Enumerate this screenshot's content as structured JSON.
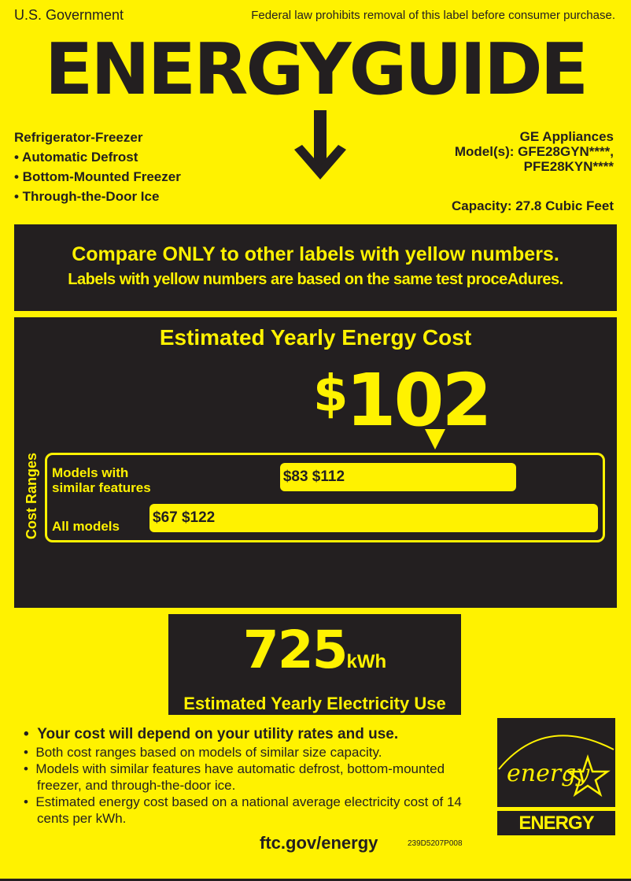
{
  "header": {
    "issuer": "U.S. Government",
    "notice": "Federal law prohibits removal of this label before consumer purchase.",
    "title": "ENERGYGUIDE"
  },
  "product": {
    "type": "Refrigerator-Freezer",
    "features": [
      "• Automatic Defrost",
      "• Bottom-Mounted Freezer",
      "• Through-the-Door Ice"
    ],
    "brand": "GE Appliances",
    "model_line1": "Model(s): GFE28GYN****,",
    "model_line2": "PFE28KYN****",
    "capacity": "Capacity: 27.8 Cubic Feet"
  },
  "compare": {
    "line1": "Compare ONLY to other labels with yellow numbers.",
    "line2": "Labels with yellow numbers are based on the same test proceAdures."
  },
  "cost": {
    "heading": "Estimated Yearly Energy Cost",
    "currency": "$",
    "value": "102",
    "value_num": 102,
    "ranges_label": "Cost Ranges",
    "similar_label_1": "Models with",
    "similar_label_2": "similar features",
    "all_label": "All models",
    "similar_range": "$83 $112",
    "similar_min": 83,
    "similar_max": 112,
    "all_range": "$67 $122",
    "all_min": 67,
    "all_max": 122
  },
  "electricity": {
    "value": "725",
    "unit": "kWh",
    "label": "Estimated Yearly Electricity Use"
  },
  "notes": {
    "bold": "Your cost will depend on your utility rates and use.",
    "items": [
      "Both cost ranges based on models of similar size capacity.",
      "Models with similar features have automatic defrost, bottom-mounted freezer, and through-the-door ice.",
      "Estimated energy cost based on a national average electricity cost of 14 cents per kWh."
    ]
  },
  "energy_star": {
    "script": "energy",
    "wordmark": "ENERGY STAR"
  },
  "footer": {
    "url": "ftc.gov/energy",
    "code": "239D5207P008"
  },
  "colors": {
    "label_yellow": "#fff200",
    "dark": "#231f20"
  }
}
